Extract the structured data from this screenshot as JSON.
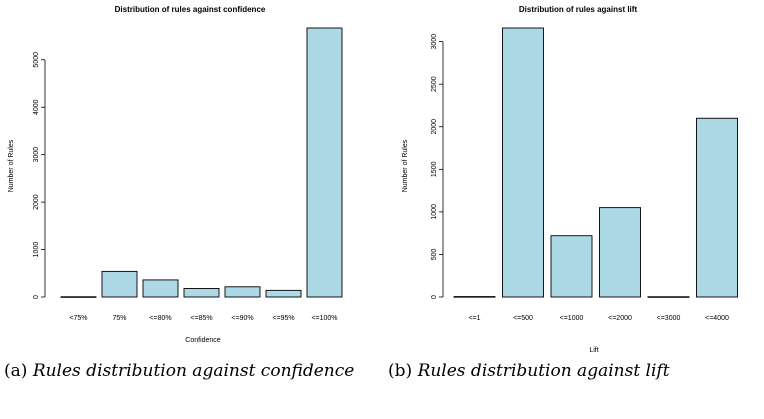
{
  "chart_data": [
    {
      "type": "bar",
      "title": "Distribution of rules against confidence",
      "xlabel": "Confidence",
      "ylabel": "Number of Rules",
      "categories": [
        "<75%",
        "75%",
        "<=80%",
        "<=85%",
        "<=90%",
        "<=95%",
        "<=100%"
      ],
      "values": [
        5,
        540,
        360,
        180,
        215,
        140,
        5670
      ],
      "ylim": [
        0,
        5670
      ],
      "yticks": [
        0,
        1000,
        2000,
        3000,
        4000,
        5000
      ],
      "bar_color": "#add8e6",
      "grid": false
    },
    {
      "type": "bar",
      "title": "Distribution of rules against lift",
      "xlabel": "Lift",
      "ylabel": "Number of Rules",
      "categories": [
        "<=1",
        "<=500",
        "<=1000",
        "<=2000",
        "<=3000",
        "<=4000"
      ],
      "values": [
        5,
        3160,
        720,
        1050,
        3,
        2100
      ],
      "ylim": [
        0,
        3160
      ],
      "yticks": [
        0,
        500,
        1000,
        1500,
        2000,
        2500,
        3000
      ],
      "bar_color": "#add8e6",
      "grid": false
    }
  ],
  "captions": {
    "a": {
      "label": "(a)",
      "text": "Rules distribution against confidence"
    },
    "b": {
      "label": "(b)",
      "text": "Rules distribution against lift"
    }
  }
}
